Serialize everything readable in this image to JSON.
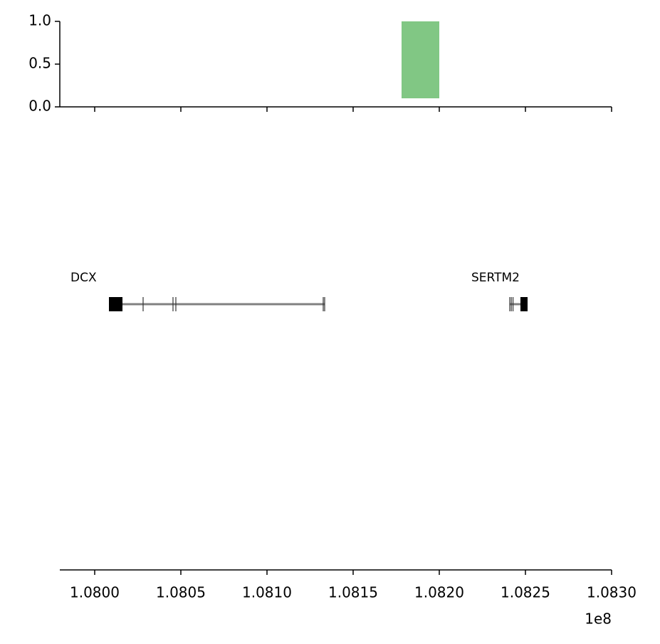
{
  "chart_data": [
    {
      "type": "bar",
      "series": [
        {
          "color": "#81c784",
          "start": [
            108178100
          ],
          "end": [
            108200000
          ],
          "bottom": [
            0.1
          ],
          "values": [
            1.0
          ]
        }
      ],
      "ylim": [
        0,
        1
      ],
      "yticks": [
        {
          "value": 0,
          "label": "0.0"
        },
        {
          "value": 0.5,
          "label": "0.5"
        },
        {
          "value": 1,
          "label": "1.0"
        }
      ]
    },
    {
      "type": "gene-track",
      "genes": [
        {
          "name": "DCX",
          "start": 108008265,
          "end": 108133470,
          "thick_start": 108008265,
          "thick_end": 108016120,
          "exons": [
            108028100,
            108045450,
            108047100,
            108132640,
            108133470
          ]
        },
        {
          "name": "SERTM2",
          "start": 108240900,
          "end": 108251240,
          "thick_start": 108247100,
          "thick_end": 108251240,
          "exons": [
            108240900,
            108241800,
            108242800
          ]
        }
      ],
      "xlim": [
        107979750,
        108300000
      ],
      "xticks": [
        {
          "value": 108000000,
          "label": "1.0800"
        },
        {
          "value": 108050000,
          "label": "1.0805"
        },
        {
          "value": 108100000,
          "label": "1.0810"
        },
        {
          "value": 108150000,
          "label": "1.0815"
        },
        {
          "value": 108200000,
          "label": "1.0820"
        },
        {
          "value": 108250000,
          "label": "1.0825"
        },
        {
          "value": 108300000,
          "label": "1.0830"
        }
      ],
      "offset_label": "1e8"
    }
  ]
}
